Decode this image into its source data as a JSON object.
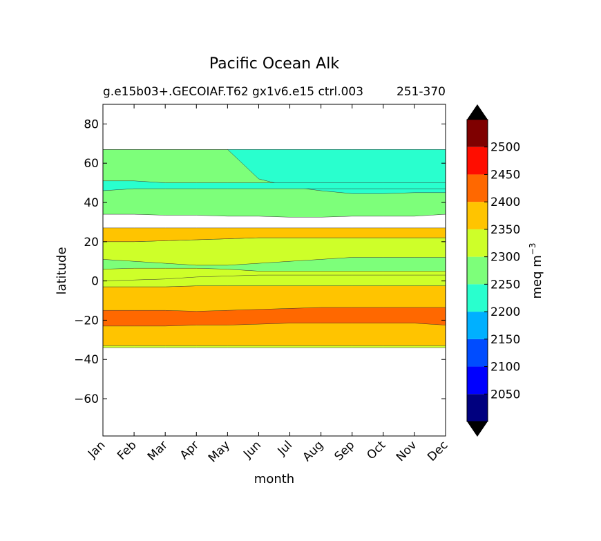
{
  "chart_data": {
    "type": "heatmap",
    "subtype": "filled-contour",
    "title": "Pacific Ocean Alk",
    "subtitle": "g.e15b03+.GECOIAF.T62 gx1v6.e15 ctrl.003",
    "subtitle_extra": "251-370",
    "xlabel": "month",
    "ylabel": "latitude",
    "x_categories": [
      "Jan",
      "Feb",
      "Mar",
      "Apr",
      "May",
      "Jun",
      "Jul",
      "Aug",
      "Sep",
      "Oct",
      "Nov",
      "Dec"
    ],
    "y_ticks": [
      "80",
      "60",
      "40",
      "20",
      "0",
      "−20",
      "−40",
      "−60"
    ],
    "y_tick_values": [
      80,
      60,
      40,
      20,
      0,
      -20,
      -40,
      -60
    ],
    "ylim": [
      -79,
      90
    ],
    "xlim": [
      0,
      11
    ],
    "data_lat_range": [
      -34,
      67
    ],
    "colorbar": {
      "label_base": "meq m",
      "label_exp": "−3",
      "levels": [
        2000,
        2050,
        2100,
        2150,
        2200,
        2250,
        2300,
        2350,
        2400,
        2450,
        2500,
        2550
      ],
      "tick_labels": [
        "2050",
        "2100",
        "2150",
        "2200",
        "2250",
        "2300",
        "2350",
        "2400",
        "2450",
        "2500"
      ],
      "tick_values": [
        2050,
        2100,
        2150,
        2200,
        2250,
        2300,
        2350,
        2400,
        2450,
        2500
      ],
      "colors": [
        "#00007f",
        "#0000ff",
        "#004cff",
        "#00b0ff",
        "#29ffce",
        "#7dff7a",
        "#ceff29",
        "#ffc400",
        "#ff6800",
        "#ff0d00",
        "#7f0000"
      ],
      "extend": "both",
      "extend_colors": [
        "#000000",
        "#000000"
      ]
    },
    "contour_regions": [
      {
        "level": "2300-2350",
        "color": "#ceff29",
        "lat_top": [
          20,
          20,
          20.5,
          21,
          21.5,
          22,
          22,
          22,
          22,
          22,
          22,
          22
        ],
        "lat_bottom": [
          -34,
          -34,
          -34,
          -34,
          -34,
          -34,
          -34,
          -34,
          -34,
          -34,
          -34,
          -34
        ]
      },
      {
        "level": "2350-2400",
        "color": "#ffc400",
        "lat_top": [
          -3,
          -3,
          -3,
          -2.5,
          -2.5,
          -2.5,
          -2.5,
          -2.5,
          -2.5,
          -2.5,
          -2.5,
          -2.5
        ],
        "lat_bottom": [
          -33,
          -33,
          -33,
          -33,
          -33,
          -33,
          -33,
          -33,
          -33,
          -33,
          -33,
          -33
        ]
      },
      {
        "level": "2400-2450",
        "color": "#ff6800",
        "lat_top": [
          -15,
          -15,
          -15,
          -15.5,
          -15,
          -14.5,
          -14,
          -13.5,
          -13.5,
          -13.5,
          -13.5,
          -13.5
        ],
        "lat_bottom": [
          -23,
          -23,
          -23,
          -22.5,
          -22.5,
          -22,
          -21.5,
          -21.5,
          -21.5,
          -21.5,
          -21.5,
          -22.5
        ]
      },
      {
        "level": "2300-2350",
        "color": "#ceff29",
        "lat_top": [
          0,
          0.5,
          1,
          2,
          2.5,
          3,
          3,
          3,
          3,
          3,
          3,
          3
        ],
        "lat_bottom": [
          -3,
          -3,
          -3,
          -2.5,
          -2.5,
          -2.5,
          -2.5,
          -2.5,
          -2.5,
          -2.5,
          -2.5,
          -2.5
        ]
      },
      {
        "level": "2350-2400",
        "color": "#ffc400",
        "lat_top": [
          27,
          27,
          27,
          27,
          27,
          27,
          27,
          27,
          27,
          27,
          27,
          27
        ],
        "lat_bottom": [
          20,
          20,
          20.5,
          21,
          21.5,
          22,
          22,
          22,
          22,
          22,
          22,
          22
        ]
      },
      {
        "level": "2250-2300",
        "color": "#7dff7a",
        "lat_top": [
          67,
          67,
          67,
          67,
          67,
          67,
          67,
          67,
          67,
          67,
          67,
          67
        ],
        "lat_bottom": [
          34,
          34,
          33.5,
          33.5,
          33,
          33,
          32.5,
          32.5,
          33,
          33,
          33,
          34
        ]
      },
      {
        "level": "2250-2300",
        "color": "#7dff7a",
        "lat_top": [
          11,
          10,
          9,
          8,
          8,
          9,
          10,
          11,
          12,
          12,
          12,
          12
        ],
        "lat_bottom": [
          6,
          6.5,
          6.5,
          6.5,
          6,
          5,
          5,
          5,
          5,
          5,
          5,
          5
        ]
      },
      {
        "level": "2200-2250",
        "color": "#29ffce",
        "lat_top": [
          67,
          67,
          67,
          67,
          67,
          67,
          67,
          67,
          67,
          67,
          67,
          67
        ],
        "lat_bottom": [
          67,
          67,
          67,
          67,
          67,
          52,
          48,
          46,
          44.5,
          44.5,
          45,
          45
        ]
      },
      {
        "level": "2200-2250",
        "color": "#29ffce",
        "lat_top": [
          51,
          51,
          50,
          50,
          50,
          50,
          50,
          50,
          50,
          50,
          50,
          50
        ],
        "lat_bottom": [
          46,
          47,
          47,
          47,
          47,
          47,
          47,
          47,
          47,
          47,
          47,
          47
        ]
      }
    ],
    "legend_position": "right-colorbar",
    "grid": false
  }
}
